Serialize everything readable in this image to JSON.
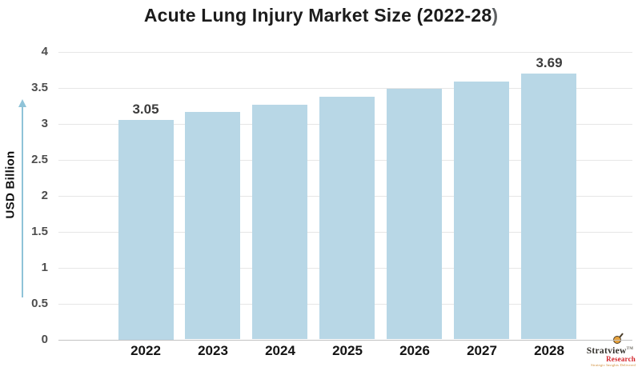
{
  "title": {
    "main": "Acute Lung Injury Market Size (2022-28",
    "closing_paren": ")"
  },
  "y_axis": {
    "label": "USD Billion",
    "ticks_top_to_bottom": [
      "4",
      "3.5",
      "3",
      "2.5",
      "2",
      "1.5",
      "1",
      "0.5",
      "0"
    ]
  },
  "chart_data": {
    "type": "bar",
    "title": "Acute Lung Injury Market Size (2022-28)",
    "xlabel": "",
    "ylabel": "USD Billion",
    "categories": [
      "2022",
      "2023",
      "2024",
      "2025",
      "2026",
      "2027",
      "2028"
    ],
    "values": [
      3.05,
      3.16,
      3.26,
      3.37,
      3.48,
      3.58,
      3.69
    ],
    "data_labels": [
      "3.05",
      null,
      null,
      null,
      null,
      null,
      "3.69"
    ],
    "ylim": [
      0,
      4
    ],
    "ytick_step": 0.5,
    "grid": "horizontal-light",
    "legend": "none",
    "bar_color": "#b8d7e6",
    "arrow_color": "#8fc3d8"
  },
  "logo": {
    "brand": "Stratview",
    "trademark": "TM",
    "sub_brand": "Research",
    "tagline": "Strategic Insights Delivered",
    "accent_red": "#d3232a",
    "accent_orange": "#e8a33d"
  },
  "colors": {
    "background": "#ffffff",
    "title_text": "#1c1c1c",
    "axis_text": "#4d4d4d",
    "year_text": "#141414",
    "gridline": "#e6e6e6",
    "baseline": "#c2c2c2"
  }
}
